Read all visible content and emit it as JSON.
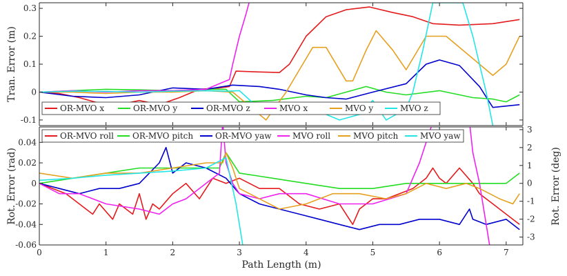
{
  "chart_data": [
    {
      "type": "line",
      "panel": "top",
      "ylabel": "Tran. Error (m)",
      "xlim": [
        0,
        7.25
      ],
      "ylim": [
        -0.12,
        0.32
      ],
      "xticks": [
        0,
        1,
        2,
        3,
        4,
        5,
        6,
        7
      ],
      "yticks": [
        -0.1,
        0,
        0.1,
        0.2,
        0.3
      ],
      "ytick_labels": [
        "-0.1",
        "0",
        "0.1",
        "0.2",
        "0.3"
      ],
      "legend": "bottom-left",
      "series": [
        {
          "name": "OR-MVO x",
          "color": "#e41a1c",
          "x": [
            0,
            0.3,
            0.6,
            0.9,
            1.2,
            1.5,
            1.8,
            2.1,
            2.4,
            2.7,
            2.85,
            2.95,
            3.3,
            3.6,
            3.75,
            4.0,
            4.3,
            4.6,
            4.95,
            5.3,
            5.6,
            5.9,
            6.3,
            6.8,
            7.2
          ],
          "y": [
            0,
            -0.005,
            -0.02,
            -0.04,
            -0.045,
            -0.03,
            -0.045,
            -0.02,
            0.01,
            0.015,
            0.02,
            0.075,
            0.072,
            0.07,
            0.1,
            0.2,
            0.27,
            0.295,
            0.305,
            0.285,
            0.27,
            0.245,
            0.24,
            0.245,
            0.26
          ]
        },
        {
          "name": "OR-MVO y",
          "color": "#22dd22",
          "x": [
            0,
            0.5,
            1.0,
            1.5,
            2.0,
            2.5,
            2.8,
            3.0,
            3.5,
            4.0,
            4.3,
            4.6,
            4.9,
            5.2,
            5.5,
            6.0,
            6.5,
            6.8,
            7.0,
            7.2
          ],
          "y": [
            0,
            0.005,
            0.01,
            0.008,
            0.005,
            0.01,
            0.01,
            -0.035,
            -0.03,
            -0.015,
            -0.02,
            0.0,
            0.02,
            0.0,
            -0.01,
            0.005,
            -0.02,
            -0.025,
            -0.035,
            -0.01
          ]
        },
        {
          "name": "OR-MVO z",
          "color": "#0000cc",
          "x": [
            0,
            0.5,
            1.0,
            1.5,
            2.0,
            2.5,
            2.9,
            3.3,
            3.6,
            4.0,
            4.3,
            4.6,
            5.0,
            5.5,
            5.8,
            6.0,
            6.3,
            6.6,
            6.8,
            7.2
          ],
          "y": [
            0,
            -0.015,
            -0.02,
            -0.01,
            0.015,
            0.01,
            0.025,
            0.02,
            0.01,
            -0.01,
            -0.02,
            -0.025,
            0.0,
            0.03,
            0.1,
            0.115,
            0.095,
            0.02,
            -0.055,
            -0.045
          ]
        },
        {
          "name": "MVO x",
          "color": "#ee22ee",
          "x": [
            0,
            0.5,
            1.0,
            1.5,
            2.0,
            2.5,
            2.75,
            2.85,
            2.9,
            2.95,
            3.0,
            3.1,
            3.15
          ],
          "y": [
            0,
            0.005,
            0.0,
            0.005,
            0.005,
            0.01,
            0.035,
            0.045,
            0.1,
            0.15,
            0.2,
            0.28,
            0.325
          ]
        },
        {
          "name": "MVO y",
          "color": "#e6a020",
          "x": [
            0,
            0.5,
            1.0,
            1.5,
            2.0,
            2.5,
            2.9,
            3.1,
            3.4,
            3.7,
            3.95,
            4.1,
            4.3,
            4.6,
            4.7,
            4.9,
            5.05,
            5.3,
            5.5,
            5.8,
            6.1,
            6.5,
            6.8,
            7.0,
            7.2
          ],
          "y": [
            0,
            0.0,
            -0.005,
            0.0,
            0.0,
            0.005,
            0.0,
            -0.04,
            -0.1,
            0.0,
            0.1,
            0.16,
            0.16,
            0.04,
            0.04,
            0.15,
            0.22,
            0.15,
            0.08,
            0.2,
            0.2,
            0.12,
            0.06,
            0.1,
            0.2
          ]
        },
        {
          "name": "MVO z",
          "color": "#22e6e6",
          "x": [
            0,
            0.5,
            1.0,
            1.5,
            2.0,
            2.5,
            2.8,
            3.0,
            3.3,
            3.6,
            3.9,
            4.2,
            4.5,
            4.8,
            5.0,
            5.2,
            5.5,
            5.6,
            5.75,
            5.9,
            6.15,
            6.35,
            6.5,
            6.7,
            6.8
          ],
          "y": [
            0,
            0.003,
            0.002,
            0.0,
            0.003,
            0.005,
            0.003,
            0.005,
            -0.06,
            -0.06,
            -0.06,
            -0.07,
            -0.1,
            -0.08,
            -0.03,
            -0.1,
            -0.06,
            0.0,
            0.15,
            0.32,
            0.32,
            0.32,
            0.2,
            0.0,
            -0.12
          ]
        }
      ]
    },
    {
      "type": "line",
      "panel": "bottom",
      "xlabel": "Path Length (m)",
      "ylabel": "Rot. Error (rad)",
      "ylabel_right": "Rot. Error (deg)",
      "xlim": [
        0,
        7.25
      ],
      "ylim": [
        -0.06,
        0.055
      ],
      "ylim_right": [
        -3.44,
        3.15
      ],
      "xticks": [
        0,
        1,
        2,
        3,
        4,
        5,
        6,
        7
      ],
      "yticks": [
        -0.06,
        -0.04,
        -0.02,
        0,
        0.02,
        0.04
      ],
      "ytick_labels": [
        "-0.06",
        "-0.04",
        "-0.02",
        "0",
        "0.02",
        "0.04"
      ],
      "yticks_right": [
        -3,
        -2,
        -1,
        0,
        1,
        2,
        3
      ],
      "ytick_labels_right": [
        "-3",
        "-2",
        "-1",
        "0",
        "1",
        "2",
        "3"
      ],
      "legend": "top-left",
      "series": [
        {
          "name": "OR-MVO roll",
          "color": "#e41a1c",
          "x": [
            0,
            0.4,
            0.8,
            0.9,
            1.1,
            1.2,
            1.4,
            1.5,
            1.6,
            1.7,
            1.8,
            2.0,
            2.2,
            2.4,
            2.6,
            2.8,
            3.0,
            3.3,
            3.6,
            3.9,
            4.2,
            4.5,
            4.7,
            4.8,
            5.0,
            5.2,
            5.4,
            5.6,
            5.8,
            5.9,
            6.0,
            6.1,
            6.3,
            6.5,
            6.6,
            6.8,
            7.0,
            7.2
          ],
          "y": [
            0,
            -0.01,
            -0.03,
            -0.02,
            -0.035,
            -0.02,
            -0.03,
            -0.01,
            -0.035,
            -0.02,
            -0.025,
            -0.01,
            0.0,
            -0.015,
            0.005,
            0.0,
            0.005,
            -0.005,
            -0.005,
            -0.02,
            -0.025,
            -0.02,
            -0.04,
            -0.025,
            -0.015,
            -0.015,
            -0.01,
            -0.005,
            0.005,
            0.015,
            0.005,
            0.0,
            0.015,
            0.0,
            -0.01,
            -0.02,
            -0.03,
            -0.04
          ]
        },
        {
          "name": "OR-MVO pitch",
          "color": "#22dd22",
          "x": [
            0,
            0.5,
            1.0,
            1.5,
            2.0,
            2.4,
            2.7,
            2.8,
            3.0,
            3.5,
            4.0,
            4.5,
            5.0,
            5.5,
            6.0,
            6.5,
            7.0,
            7.2
          ],
          "y": [
            0,
            0.005,
            0.01,
            0.015,
            0.015,
            0.015,
            0.015,
            0.03,
            0.01,
            0.005,
            0.0,
            -0.005,
            -0.005,
            0.0,
            0.0,
            0.0,
            0.0,
            0.01
          ]
        },
        {
          "name": "OR-MVO yaw",
          "color": "#0000cc",
          "x": [
            0,
            0.3,
            0.6,
            0.9,
            1.2,
            1.5,
            1.8,
            1.9,
            2.0,
            2.2,
            2.5,
            2.8,
            3.0,
            3.3,
            3.6,
            3.9,
            4.2,
            4.5,
            4.8,
            5.1,
            5.4,
            5.7,
            6.0,
            6.3,
            6.45,
            6.5,
            6.7,
            7.0,
            7.2
          ],
          "y": [
            0,
            -0.005,
            -0.01,
            -0.005,
            -0.005,
            0.0,
            0.02,
            0.035,
            0.01,
            0.02,
            0.015,
            0.005,
            -0.01,
            -0.02,
            -0.025,
            -0.03,
            -0.035,
            -0.04,
            -0.045,
            -0.04,
            -0.04,
            -0.035,
            -0.035,
            -0.04,
            -0.025,
            -0.035,
            -0.04,
            -0.035,
            -0.045
          ]
        },
        {
          "name": "MVO roll",
          "color": "#ee22ee",
          "x": [
            0,
            0.3,
            0.6,
            1.0,
            1.5,
            1.8,
            2.0,
            2.2,
            2.5,
            2.7,
            2.75,
            2.8,
            2.9,
            3.0,
            3.3,
            3.6,
            4.0,
            4.5,
            5.0,
            5.5,
            5.7,
            5.9,
            6.1,
            6.3,
            6.45,
            6.5,
            6.6,
            6.75
          ],
          "y": [
            0,
            -0.01,
            -0.01,
            -0.02,
            -0.025,
            -0.03,
            -0.02,
            -0.015,
            0.0,
            0.01,
            0.06,
            0.02,
            0.0,
            -0.01,
            -0.015,
            -0.01,
            -0.01,
            -0.02,
            -0.02,
            -0.01,
            0.02,
            0.06,
            0.065,
            0.065,
            0.06,
            0.03,
            0.0,
            -0.06
          ]
        },
        {
          "name": "MVO pitch",
          "color": "#e6a020",
          "x": [
            0,
            0.5,
            1.0,
            1.5,
            2.0,
            2.5,
            2.75,
            2.8,
            2.9,
            3.0,
            3.3,
            3.6,
            4.0,
            4.4,
            4.8,
            5.2,
            5.5,
            5.8,
            6.1,
            6.4,
            6.6,
            6.9,
            7.1,
            7.2
          ],
          "y": [
            0.01,
            0.005,
            0.01,
            0.01,
            0.015,
            0.02,
            0.02,
            0.03,
            0.015,
            -0.005,
            -0.015,
            -0.025,
            -0.02,
            -0.01,
            -0.01,
            -0.015,
            -0.01,
            0.0,
            -0.005,
            0.0,
            -0.005,
            -0.015,
            -0.02,
            -0.01
          ]
        },
        {
          "name": "MVO yaw",
          "color": "#22e6e6",
          "x": [
            0,
            0.5,
            1.0,
            1.5,
            2.0,
            2.5,
            2.8,
            2.95,
            3.05
          ],
          "y": [
            0.003,
            0.005,
            0.008,
            0.01,
            0.012,
            0.015,
            0.025,
            -0.02,
            -0.06
          ]
        }
      ]
    }
  ]
}
